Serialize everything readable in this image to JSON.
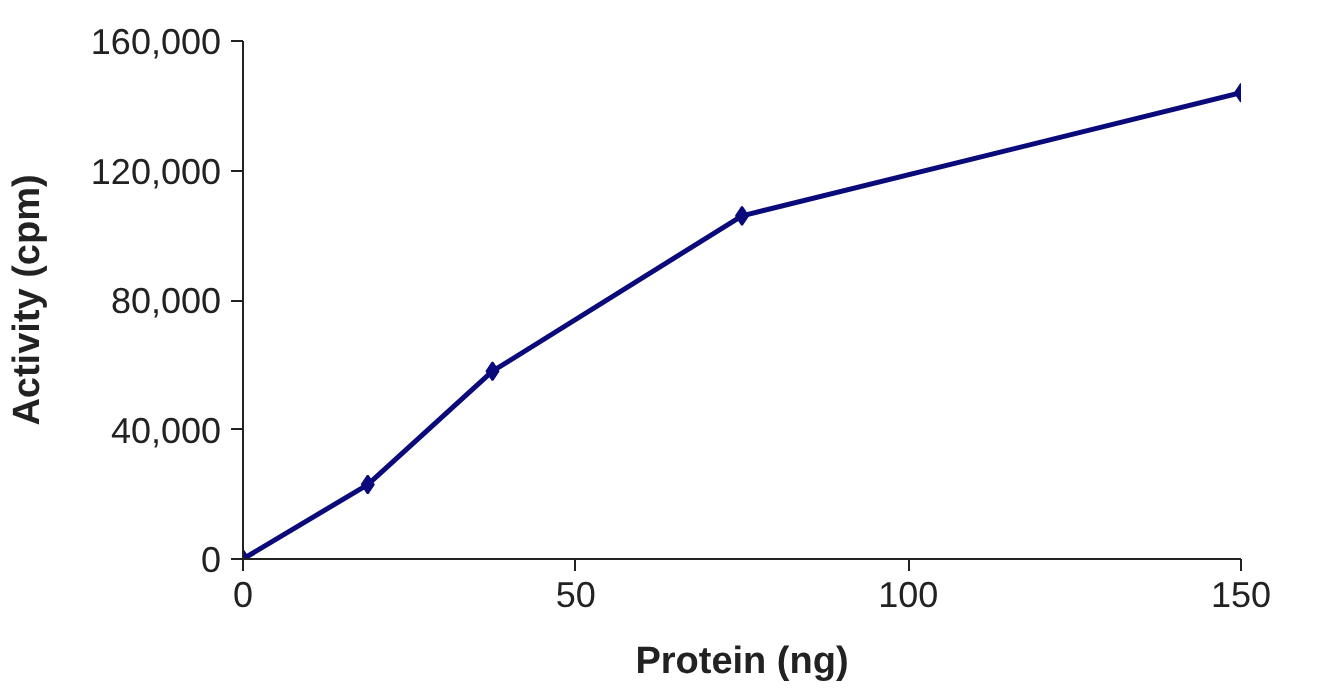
{
  "chart_data": {
    "type": "line",
    "xlabel": "Protein (ng)",
    "ylabel": "Activity (cpm)",
    "x": [
      0,
      18.75,
      37.5,
      75,
      150
    ],
    "series": [
      {
        "color": "#0a0a7a",
        "values": [
          0,
          23000,
          58000,
          106000,
          144000
        ]
      }
    ],
    "xlim": [
      0,
      150
    ],
    "xticks": [
      0,
      50,
      100,
      150
    ],
    "ylim": [
      0,
      160000
    ],
    "yticks": [
      {
        "value": 0,
        "label": "0"
      },
      {
        "value": 40000,
        "label": "40,000"
      },
      {
        "value": 80000,
        "label": "80,000"
      },
      {
        "value": 120000,
        "label": "120,000"
      },
      {
        "value": 160000,
        "label": "160,000"
      }
    ],
    "grid": false,
    "marker": "diamond",
    "line_style": "solid"
  }
}
